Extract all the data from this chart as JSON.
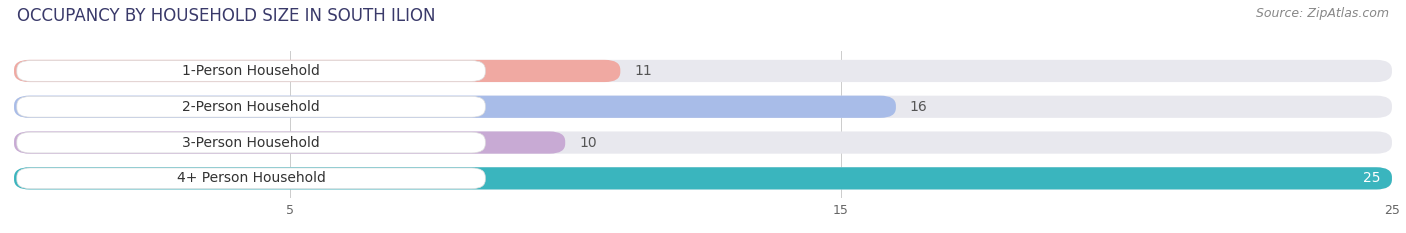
{
  "title": "OCCUPANCY BY HOUSEHOLD SIZE IN SOUTH ILION",
  "source": "Source: ZipAtlas.com",
  "categories": [
    "1-Person Household",
    "2-Person Household",
    "3-Person Household",
    "4+ Person Household"
  ],
  "values": [
    11,
    16,
    10,
    25
  ],
  "bar_colors": [
    "#f0a9a2",
    "#a8bce8",
    "#c8aad4",
    "#3ab5be"
  ],
  "bar_bg_color": "#e8e8ee",
  "label_bg_color": "#ffffff",
  "xlim_max": 25,
  "xticks": [
    5,
    15,
    25
  ],
  "value_label_color_last": "#ffffff",
  "value_label_color_others": "#555555",
  "title_fontsize": 12,
  "source_fontsize": 9,
  "label_fontsize": 10,
  "value_fontsize": 10,
  "bar_height": 0.62,
  "figsize": [
    14.06,
    2.33
  ],
  "dpi": 100,
  "bg_color": "#ffffff",
  "title_color": "#3a3a6a",
  "source_color": "#888888"
}
